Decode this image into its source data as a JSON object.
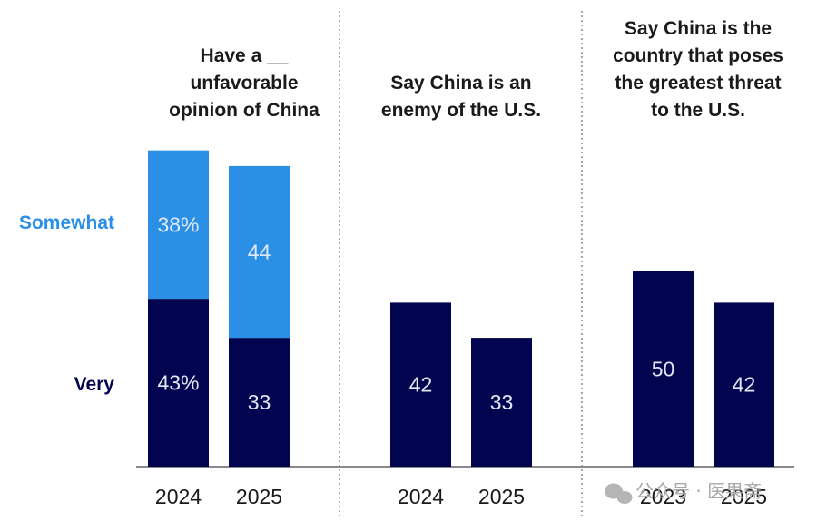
{
  "colors": {
    "very": "#03044f",
    "somewhat": "#2b8fe6",
    "axis": "#8a8a8a",
    "divider": "#8a8a8a"
  },
  "series_labels": {
    "somewhat": "Somewhat",
    "very": "Very"
  },
  "watermark": "公众号 · 医果斋",
  "chart_data": [
    {
      "type": "bar",
      "stacked": true,
      "title": "Have a __ unfavorable opinion of China",
      "title_lines": [
        "Have a __",
        "unfavorable",
        "opinion of China"
      ],
      "categories": [
        "2024",
        "2025"
      ],
      "series": [
        {
          "name": "Very",
          "values": [
            43,
            33
          ],
          "labels": [
            "43%",
            "33"
          ]
        },
        {
          "name": "Somewhat",
          "values": [
            38,
            44
          ],
          "labels": [
            "38%",
            "44"
          ]
        }
      ]
    },
    {
      "type": "bar",
      "title": "Say China is an enemy of the U.S.",
      "title_lines": [
        "Say China is an",
        "enemy of the U.S."
      ],
      "categories": [
        "2024",
        "2025"
      ],
      "series": [
        {
          "name": "Very",
          "values": [
            42,
            33
          ],
          "labels": [
            "42",
            "33"
          ]
        }
      ]
    },
    {
      "type": "bar",
      "title": "Say China is the country that poses the greatest threat to the U.S.",
      "title_lines": [
        "Say China is the",
        "country that poses",
        "the greatest threat",
        "to the U.S."
      ],
      "categories": [
        "2023",
        "2025"
      ],
      "series": [
        {
          "name": "Very",
          "values": [
            50,
            42
          ],
          "labels": [
            "50",
            "42"
          ]
        }
      ]
    }
  ]
}
